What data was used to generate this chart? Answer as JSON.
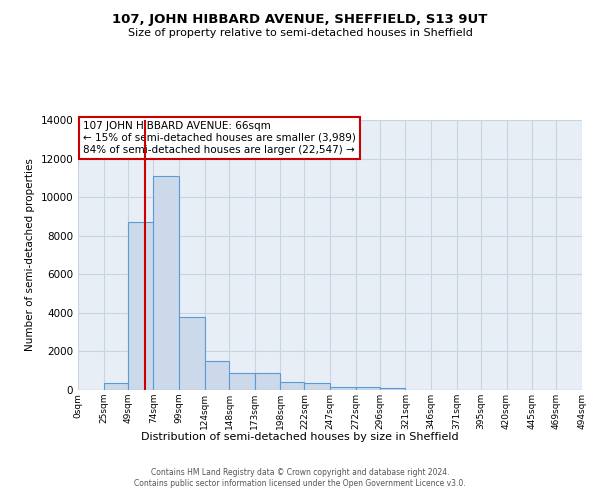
{
  "title": "107, JOHN HIBBARD AVENUE, SHEFFIELD, S13 9UT",
  "subtitle": "Size of property relative to semi-detached houses in Sheffield",
  "xlabel": "Distribution of semi-detached houses by size in Sheffield",
  "ylabel": "Number of semi-detached properties",
  "bin_edges": [
    0,
    25,
    49,
    74,
    99,
    124,
    148,
    173,
    198,
    222,
    247,
    272,
    296,
    321,
    346,
    371,
    395,
    420,
    445,
    469,
    494
  ],
  "bar_heights": [
    0,
    350,
    8700,
    11100,
    3800,
    1500,
    900,
    900,
    400,
    350,
    175,
    150,
    100,
    0,
    0,
    0,
    0,
    0,
    0,
    0
  ],
  "bar_color": "#ccd9ea",
  "bar_edge_color": "#5b9bd5",
  "plot_bg_color": "#e8eef5",
  "property_size": 66,
  "red_line_color": "#cc0000",
  "ylim": [
    0,
    14000
  ],
  "annotation_text": "107 JOHN HIBBARD AVENUE: 66sqm\n← 15% of semi-detached houses are smaller (3,989)\n84% of semi-detached houses are larger (22,547) →",
  "annotation_box_color": "#cc0000",
  "background_color": "#ffffff",
  "grid_color": "#c8d4e3",
  "footer_text": "Contains HM Land Registry data © Crown copyright and database right 2024.\nContains public sector information licensed under the Open Government Licence v3.0.",
  "tick_labels": [
    "0sqm",
    "25sqm",
    "49sqm",
    "74sqm",
    "99sqm",
    "124sqm",
    "148sqm",
    "173sqm",
    "198sqm",
    "222sqm",
    "247sqm",
    "272sqm",
    "296sqm",
    "321sqm",
    "346sqm",
    "371sqm",
    "395sqm",
    "420sqm",
    "445sqm",
    "469sqm",
    "494sqm"
  ]
}
